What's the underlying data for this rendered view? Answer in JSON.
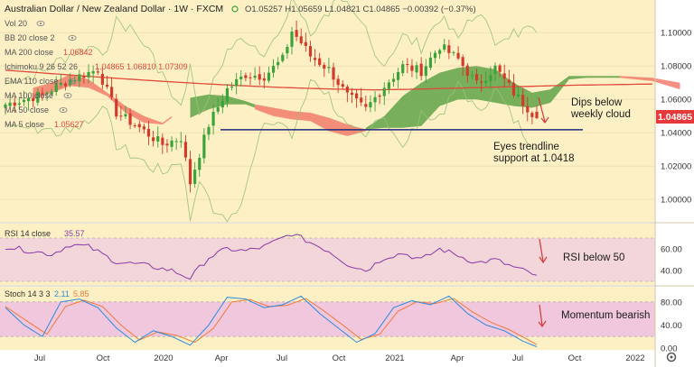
{
  "header": {
    "symbol_title": "Australian Dollar / New Zealand Dollar · 1W · FXCM",
    "ohlc": "O1.05257 H1.05659 L1.04821 C1.04865 −0.00392 (−0.37%)"
  },
  "indicators_panel": [
    {
      "label": "Vol 20",
      "value": ""
    },
    {
      "label": "BB 20 close 2",
      "value": ""
    },
    {
      "label": "MA 200 close",
      "value": "1.06842"
    },
    {
      "label": "Ichimoku 9 26 52 26",
      "value": "1.04865  1.06810  1.07309"
    },
    {
      "label": "EMA 110 close",
      "value": ""
    },
    {
      "label": "MA 100 close",
      "value": ""
    },
    {
      "label": "MA 50 close",
      "value": ""
    },
    {
      "label": "MA 5 close",
      "value": "1.05627"
    }
  ],
  "annotations": {
    "cloud_note": "Dips below\nweekly cloud",
    "trendline_note": "Eyes trendline\nsupport at 1.0418",
    "rsi_note": "RSI below 50",
    "stoch_note": "Momentum bearish"
  },
  "rsi_panel": {
    "label": "RSI 14 close",
    "value": "35.57"
  },
  "stoch_panel": {
    "label": "Stoch 14 3 3",
    "k": "2.11",
    "d": "5.85"
  },
  "price_tag": "1.04865",
  "colors": {
    "background": "#fdf0c4",
    "cloud_bull": "#5fa349",
    "cloud_bear": "#f27c6c",
    "candle_up": "#3aa33a",
    "candle_down": "#d23a2a",
    "ma200": "#e04a3a",
    "bb_line": "#9ac27a",
    "trendline": "#1f2a7a",
    "rsi_line": "#8a3aa6",
    "rsi_band": "#f3d6d9",
    "stoch_band": "#f0c7dd",
    "stoch_k": "#2c8bdc",
    "stoch_d": "#f07a3a",
    "tag_bg": "#e63a3a"
  },
  "chart_data": {
    "type": "candlestick",
    "title": "Australian Dollar / New Zealand Dollar · 1W · FXCM",
    "x_ticks": [
      "Jul",
      "Oct",
      "2020",
      "Apr",
      "Jul",
      "Oct",
      "2021",
      "Apr",
      "Jul",
      "Oct",
      "2022"
    ],
    "price_ticks": [
      "1.00000",
      "1.02000",
      "1.04000",
      "1.06000",
      "1.08000",
      "1.10000"
    ],
    "price_range": [
      0.992,
      1.112
    ],
    "trendline_level": 1.0418,
    "rsi_ticks": [
      "40.00",
      "60.00"
    ],
    "rsi_range": [
      30,
      80
    ],
    "stoch_ticks": [
      "0.00",
      "40.00",
      "80.00"
    ],
    "stoch_range": [
      0,
      100
    ],
    "anchors_close": [
      [
        0,
        1.057
      ],
      [
        8,
        1.063
      ],
      [
        14,
        1.072
      ],
      [
        20,
        1.078
      ],
      [
        24,
        1.052
      ],
      [
        29,
        1.043
      ],
      [
        34,
        1.033
      ],
      [
        38,
        1.037
      ],
      [
        40,
        1.01
      ],
      [
        44,
        1.045
      ],
      [
        48,
        1.066
      ],
      [
        52,
        1.075
      ],
      [
        56,
        1.074
      ],
      [
        60,
        1.084
      ],
      [
        62,
        1.101
      ],
      [
        64,
        1.094
      ],
      [
        66,
        1.086
      ],
      [
        70,
        1.078
      ],
      [
        74,
        1.062
      ],
      [
        78,
        1.054
      ],
      [
        82,
        1.068
      ],
      [
        86,
        1.08
      ],
      [
        90,
        1.077
      ],
      [
        94,
        1.092
      ],
      [
        98,
        1.084
      ],
      [
        102,
        1.069
      ],
      [
        106,
        1.079
      ],
      [
        110,
        1.064
      ],
      [
        113,
        1.055
      ],
      [
        115,
        1.0487
      ]
    ],
    "rsi_anchors": [
      [
        0,
        62
      ],
      [
        10,
        55
      ],
      [
        14,
        64
      ],
      [
        18,
        62
      ],
      [
        24,
        48
      ],
      [
        30,
        45
      ],
      [
        36,
        40
      ],
      [
        40,
        33
      ],
      [
        44,
        52
      ],
      [
        48,
        60
      ],
      [
        52,
        58
      ],
      [
        56,
        62
      ],
      [
        62,
        74
      ],
      [
        66,
        66
      ],
      [
        70,
        58
      ],
      [
        74,
        46
      ],
      [
        78,
        40
      ],
      [
        82,
        52
      ],
      [
        86,
        56
      ],
      [
        90,
        50
      ],
      [
        94,
        60
      ],
      [
        98,
        54
      ],
      [
        102,
        47
      ],
      [
        106,
        50
      ],
      [
        110,
        43
      ],
      [
        115,
        35.57
      ]
    ],
    "stoch_k_anchors": [
      [
        0,
        70
      ],
      [
        4,
        40
      ],
      [
        8,
        20
      ],
      [
        12,
        80
      ],
      [
        16,
        85
      ],
      [
        20,
        70
      ],
      [
        24,
        35
      ],
      [
        28,
        10
      ],
      [
        32,
        30
      ],
      [
        36,
        20
      ],
      [
        40,
        5
      ],
      [
        44,
        40
      ],
      [
        48,
        88
      ],
      [
        52,
        85
      ],
      [
        56,
        70
      ],
      [
        60,
        75
      ],
      [
        64,
        90
      ],
      [
        68,
        60
      ],
      [
        72,
        35
      ],
      [
        76,
        10
      ],
      [
        80,
        25
      ],
      [
        84,
        70
      ],
      [
        88,
        82
      ],
      [
        92,
        75
      ],
      [
        96,
        90
      ],
      [
        100,
        60
      ],
      [
        104,
        40
      ],
      [
        108,
        30
      ],
      [
        112,
        12
      ],
      [
        115,
        2.11
      ]
    ],
    "stoch_d_anchors": [
      [
        0,
        72
      ],
      [
        5,
        45
      ],
      [
        9,
        24
      ],
      [
        13,
        72
      ],
      [
        17,
        83
      ],
      [
        21,
        72
      ],
      [
        25,
        40
      ],
      [
        29,
        14
      ],
      [
        33,
        28
      ],
      [
        37,
        22
      ],
      [
        41,
        10
      ],
      [
        45,
        34
      ],
      [
        49,
        80
      ],
      [
        53,
        84
      ],
      [
        57,
        72
      ],
      [
        61,
        74
      ],
      [
        65,
        86
      ],
      [
        69,
        64
      ],
      [
        73,
        40
      ],
      [
        77,
        15
      ],
      [
        81,
        24
      ],
      [
        85,
        64
      ],
      [
        89,
        80
      ],
      [
        93,
        77
      ],
      [
        97,
        86
      ],
      [
        101,
        63
      ],
      [
        105,
        45
      ],
      [
        109,
        32
      ],
      [
        113,
        15
      ],
      [
        115,
        5.85
      ]
    ]
  }
}
